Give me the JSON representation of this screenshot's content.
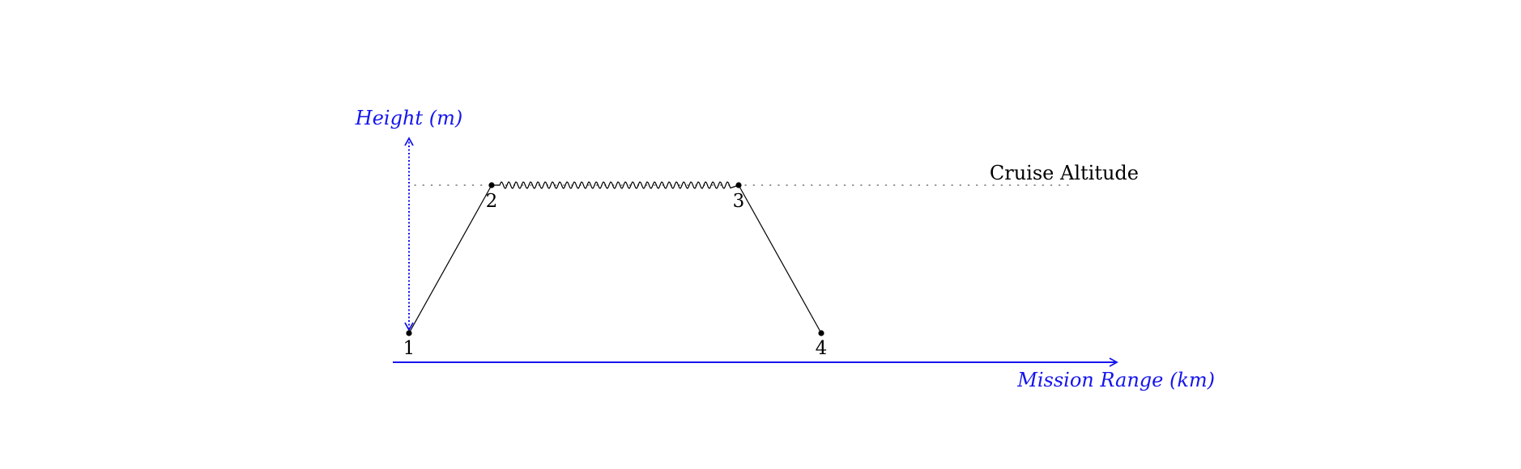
{
  "axes": {
    "y_label": "Height (m)",
    "x_label": "Mission Range (km)",
    "color": "#1515ee"
  },
  "cruise": {
    "label": "Cruise Altitude"
  },
  "points": [
    {
      "label": "1"
    },
    {
      "label": "2"
    },
    {
      "label": "3"
    },
    {
      "label": "4"
    }
  ],
  "line_color": "#000000"
}
